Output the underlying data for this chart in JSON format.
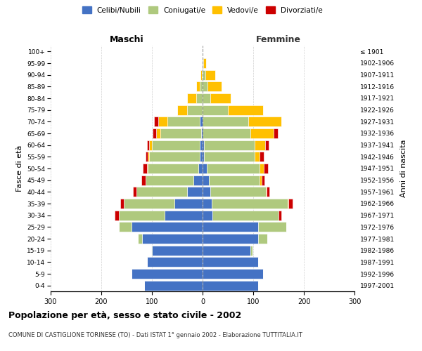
{
  "age_groups": [
    "0-4",
    "5-9",
    "10-14",
    "15-19",
    "20-24",
    "25-29",
    "30-34",
    "35-39",
    "40-44",
    "45-49",
    "50-54",
    "55-59",
    "60-64",
    "65-69",
    "70-74",
    "75-79",
    "80-84",
    "85-89",
    "90-94",
    "95-99",
    "100+"
  ],
  "birth_years": [
    "1997-2001",
    "1992-1996",
    "1987-1991",
    "1982-1986",
    "1977-1981",
    "1972-1976",
    "1967-1971",
    "1962-1966",
    "1957-1961",
    "1952-1956",
    "1947-1951",
    "1942-1946",
    "1937-1941",
    "1932-1936",
    "1927-1931",
    "1922-1926",
    "1917-1921",
    "1912-1916",
    "1907-1911",
    "1902-1906",
    "≤ 1901"
  ],
  "maschi": {
    "celibi": [
      115,
      140,
      110,
      100,
      120,
      140,
      75,
      55,
      30,
      18,
      8,
      5,
      5,
      3,
      5,
      0,
      0,
      0,
      0,
      0,
      0
    ],
    "coniugati": [
      0,
      0,
      0,
      2,
      8,
      25,
      90,
      100,
      100,
      95,
      100,
      100,
      95,
      80,
      65,
      30,
      12,
      5,
      2,
      0,
      0
    ],
    "vedovi": [
      0,
      0,
      0,
      0,
      0,
      0,
      0,
      0,
      0,
      0,
      2,
      3,
      5,
      8,
      18,
      20,
      18,
      8,
      2,
      0,
      0
    ],
    "divorziati": [
      0,
      0,
      0,
      0,
      0,
      0,
      8,
      8,
      8,
      8,
      8,
      5,
      5,
      8,
      8,
      0,
      0,
      0,
      0,
      0,
      0
    ]
  },
  "femmine": {
    "nubili": [
      110,
      120,
      110,
      95,
      110,
      110,
      20,
      18,
      15,
      12,
      8,
      3,
      3,
      0,
      0,
      0,
      0,
      0,
      0,
      0,
      0
    ],
    "coniugate": [
      0,
      0,
      0,
      3,
      18,
      55,
      130,
      150,
      110,
      100,
      105,
      100,
      100,
      95,
      90,
      50,
      15,
      10,
      5,
      2,
      0
    ],
    "vedove": [
      0,
      0,
      0,
      0,
      0,
      0,
      0,
      2,
      2,
      5,
      8,
      10,
      20,
      45,
      65,
      70,
      40,
      28,
      20,
      5,
      0
    ],
    "divorziate": [
      0,
      0,
      0,
      0,
      0,
      0,
      5,
      8,
      5,
      5,
      8,
      8,
      8,
      8,
      0,
      0,
      0,
      0,
      0,
      0,
      0
    ]
  },
  "colors": {
    "celibi": "#4472c4",
    "coniugati": "#afc97e",
    "vedovi": "#ffc000",
    "divorziati": "#cc0000"
  },
  "xlim": 300,
  "title": "Popolazione per età, sesso e stato civile - 2002",
  "subtitle": "COMUNE DI CASTIGLIONE TORINESE (TO) - Dati ISTAT 1° gennaio 2002 - Elaborazione TUTTITALIA.IT",
  "ylabel_left": "Fasce di età",
  "ylabel_right": "Anni di nascita",
  "xlabel_left": "Maschi",
  "xlabel_right": "Femmine",
  "legend_labels": [
    "Celibi/Nubili",
    "Coniugati/e",
    "Vedovi/e",
    "Divorziati/e"
  ],
  "bg_color": "#ffffff",
  "grid_color": "#cccccc",
  "femmine_color": "#333333"
}
